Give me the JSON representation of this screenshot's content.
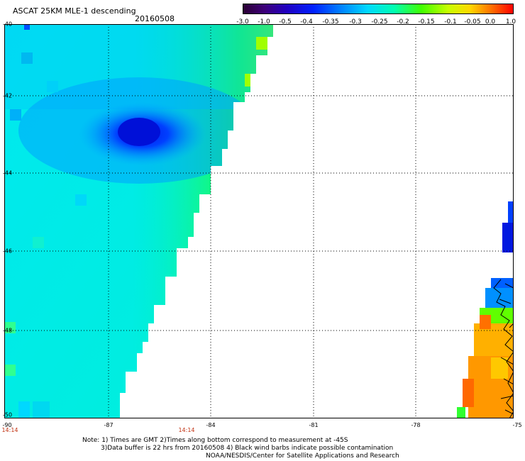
{
  "header": {
    "title": "ASCAT 25KM MLE-1 descending",
    "date": "20160508"
  },
  "colorbar": {
    "ticks": [
      "-3.0",
      "-1.0",
      "-0.5",
      "-0.4",
      "-0.35",
      "-0.3",
      "-0.25",
      "-0.2",
      "-0.15",
      "-0.1",
      "-0.05",
      "0.0",
      "1.0"
    ],
    "colors": [
      "#2a0033",
      "#3d007a",
      "#2000c0",
      "#0020ff",
      "#0080ff",
      "#00d8ff",
      "#00ffb0",
      "#40ff00",
      "#c8ff00",
      "#ffd800",
      "#ff7000",
      "#ff0000"
    ]
  },
  "axes": {
    "lat_labels": [
      "-40",
      "-42",
      "-44",
      "-46",
      "-48",
      "-50"
    ],
    "lon_labels": [
      "-90",
      "-87",
      "-84",
      "-81",
      "-78",
      "-75"
    ],
    "time_labels": [
      "14:14",
      "14:14"
    ]
  },
  "notes": {
    "line1": "Note: 1) Times are GMT 2)Times along bottom correspond to measurement at -45S",
    "line2": "3)Data buffer is 22 hrs from 20160508 4) Black wind barbs indicate possible contamination",
    "line3": "NOAA/NESDIS/Center for Satellite Applications and Research"
  }
}
